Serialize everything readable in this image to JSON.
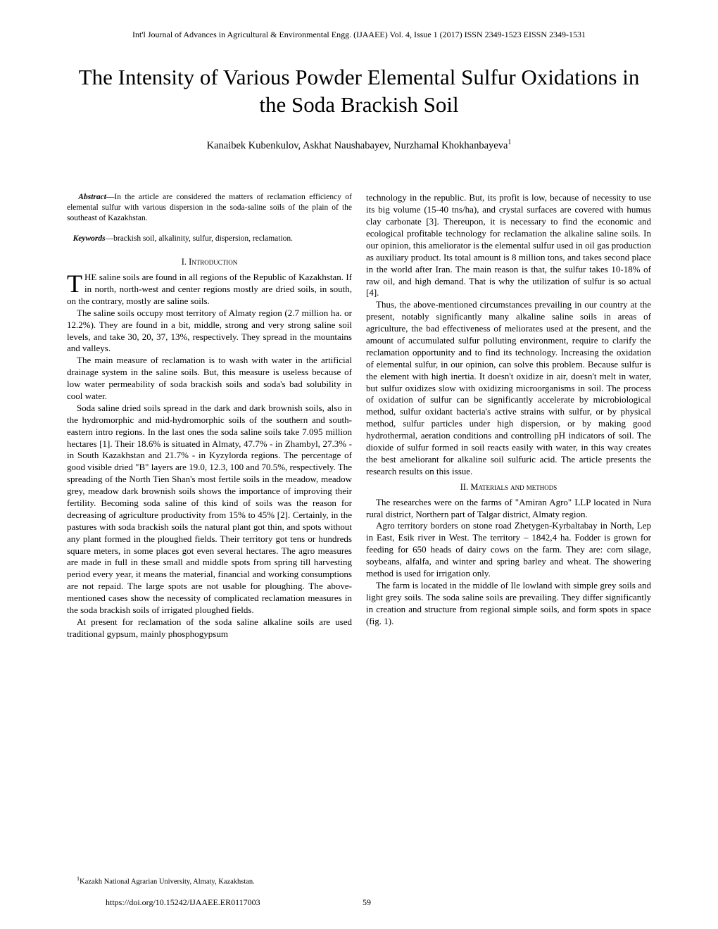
{
  "journal_header": "Int'l Journal of Advances in Agricultural & Environmental Engg. (IJAAEE) Vol. 4, Issue 1 (2017) ISSN 2349-1523 EISSN 2349-1531",
  "title": "The Intensity of Various Powder Elemental Sulfur Oxidations in the Soda Brackish Soil",
  "authors": "Kanaibek Kubenkulov, Askhat Naushabayev, Nurzhamal Khokhanbayeva",
  "authors_sup": "1",
  "abstract_label": "Abstract",
  "abstract": "—In the article are considered the matters of reclamation efficiency of elemental sulfur with various dispersion in the soda-saline soils of the plain of the southeast of Kazakhstan.",
  "keywords_label": "Keywords",
  "keywords": "—brackish soil, alkalinity, sulfur, dispersion, reclamation.",
  "section_intro": "I.  Introduction",
  "drop_cap": "T",
  "intro_p1": "HE saline soils are found in all regions of the Republic of Kazakhstan.   If in north, north-west and center  regions  mostly are dried soils, in south, on the contrary, mostly are saline soils.",
  "intro_p2": "The saline soils occupy most territory of Almaty region (2.7 million ha. or 12.2%). They are found in a bit, middle, strong and very strong saline soil levels, and take 30, 20, 37, 13%, respectively. They spread in the mountains and valleys.",
  "intro_p3": "The main measure of reclamation is to wash with water in the artificial drainage system in the saline soils. But, this measure is useless because of low water permeability of soda brackish soils and soda's bad solubility in cool water.",
  "intro_p4": "Soda saline dried soils spread in the dark and dark brownish soils, also in the hydromorphic and mid-hydromorphic soils of the southern and south-eastern intro regions. In the last ones the soda saline soils take 7.095 million hectares [1]. Their 18.6% is situated in Almaty, 47.7% - in Zhambyl, 27.3% - in South Kazakhstan and 21.7% - in Kyzylorda regions. The percentage of good visible dried \"B\" layers are 19.0, 12.3, 100 and 70.5%, respectively. The spreading of the North Tien Shan's most fertile soils in the meadow, meadow grey, meadow dark brownish soils shows the importance of improving their fertility. Becoming soda saline of this kind of soils was the reason for decreasing of agriculture productivity from 15% to 45% [2]. Certainly, in the pastures with soda brackish soils the natural plant got thin, and spots without any plant formed in the ploughed fields. Their territory got tens or hundreds square meters, in some places got even several hectares. The agro measures are made in full in these small and middle spots from spring till harvesting period every year, it means the material, financial and working consumptions are not  repaid. The large spots are not usable for ploughing. The above-mentioned cases show the necessity of complicated reclamation measures in the soda brackish soils of irrigated ploughed fields.",
  "intro_p5": "At present for reclamation of the soda saline alkaline soils are used traditional gypsum, mainly phosphogypsum",
  "col2_p1": "technology in the republic. But, its profit is low, because of necessity to use its big volume (15-40 tns/ha), and crystal surfaces are covered with humus clay carbonate [3]. Thereupon, it is necessary to find the economic and ecological profitable technology for reclamation the alkaline saline soils. In our opinion, this ameliorator is the elemental sulfur used in oil gas production as auxiliary product. Its total amount is 8 million tons, and takes second place in the world after Iran. The main reason is that, the sulfur takes 10-18% of raw oil, and high demand. That is why the utilization of sulfur is so actual [4].",
  "col2_p2": "Thus, the above-mentioned circumstances prevailing in our country at the present, notably significantly many alkaline saline soils in areas of agriculture, the bad effectiveness of meliorates used at the present, and the amount of accumulated sulfur polluting environment, require to clarify the reclamation opportunity and to find its technology. Increasing the oxidation of elemental sulfur, in our opinion, can solve this problem. Because sulfur is the element with high inertia. It doesn't oxidize in air, doesn't melt in water, but sulfur oxidizes slow with oxidizing microorganisms in soil. The process of oxidation of sulfur can be significantly accelerate by microbiological method, sulfur oxidant bacteria's active strains with sulfur, or by physical method, sulfur particles under high dispersion, or by making good hydrothermal, aeration conditions and controlling pH indicators of soil. The dioxide of sulfur formed in soil reacts easily with water, in this way creates the best ameliorant for alkaline soil sulfuric acid. The article presents the research results on this issue.",
  "section_methods": "II.  Materials and methods",
  "methods_p1": "The researches were on the farms of \"Amiran Agro\" LLP located in Nura rural district, Northern part of Talgar district, Almaty region.",
  "methods_p2": "Agro territory borders on stone road Zhetygen-Kyrbaltabay in North, Lep in East, Esik river in West. The territory – 1842,4 ha. Fodder is grown for feeding for 650 heads of dairy cows on the farm. They are: corn silage, soybeans, alfalfa, and winter and spring barley and wheat. The showering method is used for irrigation only.",
  "methods_p3": "The farm is located in the middle of Ile lowland with simple grey soils and light grey soils.   The soda saline soils are prevailing. They differ significantly in creation and structure from regional simple soils, and form spots in space (fig. 1).",
  "footnote_sup": "1",
  "footnote": "Kazakh National Agrarian University, Almaty, Kazakhstan.",
  "doi": "https://doi.org/10.15242/IJAAEE.ER0117003",
  "page_number": "59"
}
